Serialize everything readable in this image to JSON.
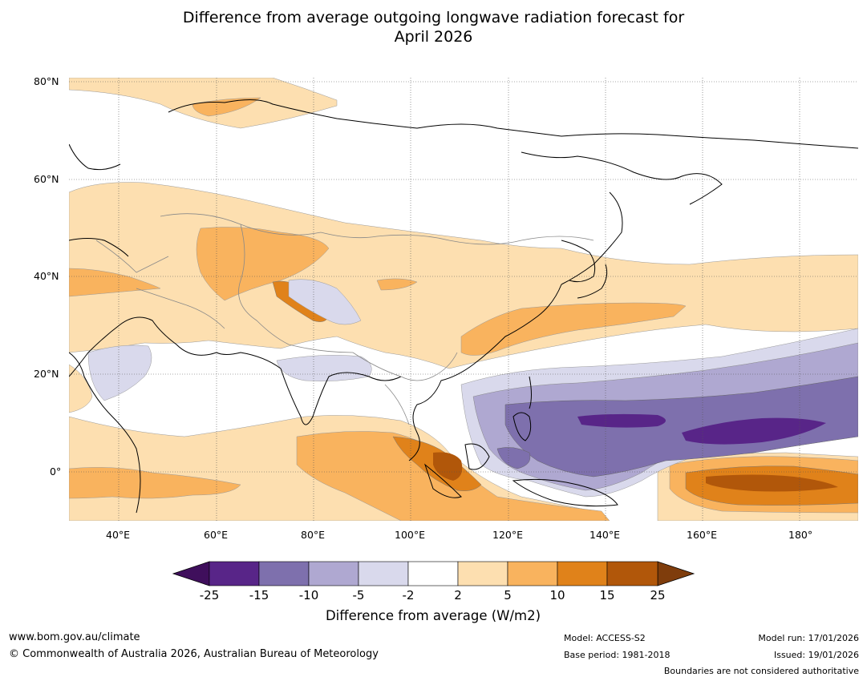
{
  "title": {
    "line1": "Difference from average outgoing longwave radiation forecast for",
    "line2": "April 2026"
  },
  "axes": {
    "y_ticks": [
      "80°N",
      "60°N",
      "40°N",
      "20°N",
      "0°"
    ],
    "x_ticks": [
      "40°E",
      "60°E",
      "80°E",
      "100°E",
      "120°E",
      "140°E",
      "160°E",
      "180°"
    ]
  },
  "colorbar": {
    "title": "Difference from average (W/m2)",
    "tick_labels": [
      "-25",
      "-15",
      "-10",
      "-5",
      "-2",
      "2",
      "5",
      "10",
      "15",
      "25"
    ],
    "colors": [
      "#3f0f5c",
      "#582588",
      "#7e70ad",
      "#afa8d1",
      "#d9d9ec",
      "#ffffff",
      "#fddfb0",
      "#f9b35e",
      "#e0821a",
      "#b1570a",
      "#7f3d0c"
    ]
  },
  "footer": {
    "website": "www.bom.gov.au/climate",
    "copyright": "© Commonwealth of Australia 2026, Australian Bureau of Meteorology",
    "model": "Model: ACCESS-S2",
    "base_period": "Base period: 1981-2018",
    "model_run": "Model run: 17/01/2026",
    "issued": "Issued: 19/01/2026",
    "disclaimer": "Boundaries are not considered authoritative"
  }
}
